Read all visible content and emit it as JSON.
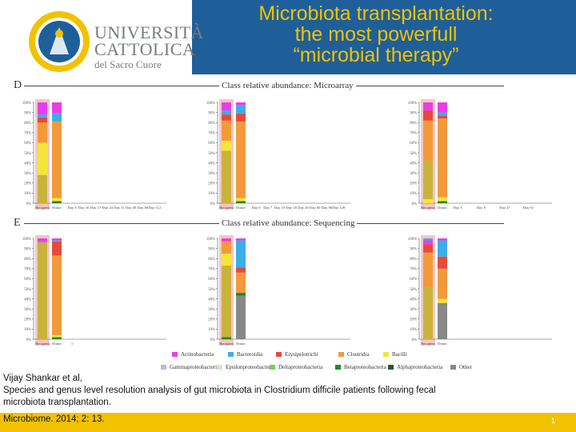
{
  "header": {
    "university_line1": "UNIVERSITÀ",
    "university_line2": "CATTOLICA",
    "university_line3": "del Sacro Cuore",
    "title_line1": "Microbiota transplantation:",
    "title_line2": "the most powerfull",
    "title_line3": "“microbial therapy”",
    "logo_icon": "university-seal-icon"
  },
  "figure": {
    "section_d_letter": "D",
    "section_d_title": "Class relative abundance: Microarray",
    "section_e_letter": "E",
    "section_e_title": "Class relative abundance: Sequencing",
    "y_ticks": [
      "100%",
      "90%",
      "80%",
      "70%",
      "60%",
      "50%",
      "40%",
      "30%",
      "20%",
      "10%",
      "0%"
    ],
    "colors": {
      "Actinobacteria": "#e83ee8",
      "Bacteroidia": "#3aaee8",
      "Erysipelotrichi": "#e84a3a",
      "Clostridia": "#f29a3a",
      "Bacilli": "#f2e63a",
      "Gammaproteobacteria": "#b8b8e8",
      "Epsilonproteobacteria": "#c8ecc8",
      "Deltaproteobacteria": "#78d050",
      "Betaproteobacteria": "#1e8a2e",
      "Alphaproteobacteria": "#1e5a3a",
      "Other": "#888888",
      "Olive": "#c8b43c"
    }
  },
  "chart_data": [
    {
      "type": "bar",
      "title": "Class relative abundance: Microarray — Patient 1",
      "categories": [
        "Recipient",
        "Donor",
        "Day 3",
        "Day 10",
        "Day 17",
        "Day 24",
        "Day 31",
        "Day 38",
        "Day 60",
        "Day 112"
      ],
      "series_note": "stacked percent bars; only Recipient and Donor bars shown",
      "stacks": [
        {
          "category": "Recipient",
          "segments": [
            {
              "name": "Olive",
              "value": 28
            },
            {
              "name": "Bacilli",
              "value": 32
            },
            {
              "name": "Clostridia",
              "value": 20
            },
            {
              "name": "Erysipelotrichi",
              "value": 5
            },
            {
              "name": "Bacteroidia",
              "value": 3
            },
            {
              "name": "Actinobacteria",
              "value": 12
            }
          ]
        },
        {
          "category": "Donor",
          "segments": [
            {
              "name": "Betaproteobacteria",
              "value": 2
            },
            {
              "name": "Bacilli",
              "value": 3
            },
            {
              "name": "Clostridia",
              "value": 76
            },
            {
              "name": "Bacteroidia",
              "value": 8
            },
            {
              "name": "Actinobacteria",
              "value": 11
            }
          ]
        }
      ],
      "ylim": [
        0,
        100
      ]
    },
    {
      "type": "bar",
      "title": "Class relative abundance: Microarray — Patient 2",
      "categories": [
        "Recipient",
        "Donor",
        "Day 0",
        "Day 7",
        "Day 10",
        "Day 18",
        "Day 29",
        "Day 60",
        "Day 90",
        "Day 128"
      ],
      "stacks": [
        {
          "category": "Recipient",
          "segments": [
            {
              "name": "Olive",
              "value": 52
            },
            {
              "name": "Bacilli",
              "value": 10
            },
            {
              "name": "Clostridia",
              "value": 20
            },
            {
              "name": "Erysipelotrichi",
              "value": 6
            },
            {
              "name": "Bacteroidia",
              "value": 4
            },
            {
              "name": "Actinobacteria",
              "value": 8
            }
          ]
        },
        {
          "category": "Donor",
          "segments": [
            {
              "name": "Betaproteobacteria",
              "value": 2
            },
            {
              "name": "Bacilli",
              "value": 3
            },
            {
              "name": "Clostridia",
              "value": 76
            },
            {
              "name": "Erysipelotrichi",
              "value": 8
            },
            {
              "name": "Bacteroidia",
              "value": 8
            },
            {
              "name": "Actinobacteria",
              "value": 3
            }
          ]
        }
      ],
      "ylim": [
        0,
        100
      ]
    },
    {
      "type": "bar",
      "title": "Class relative abundance: Microarray — Patient 3",
      "categories": [
        "Recipient",
        "Donor",
        "Day 3",
        "Day 9",
        "Day 27",
        "Day 61"
      ],
      "stacks": [
        {
          "category": "Recipient",
          "segments": [
            {
              "name": "Bacilli",
              "value": 4
            },
            {
              "name": "Olive",
              "value": 38
            },
            {
              "name": "Clostridia",
              "value": 40
            },
            {
              "name": "Erysipelotrichi",
              "value": 10
            },
            {
              "name": "Actinobacteria",
              "value": 8
            }
          ]
        },
        {
          "category": "Donor",
          "segments": [
            {
              "name": "Betaproteobacteria",
              "value": 2
            },
            {
              "name": "Bacilli",
              "value": 4
            },
            {
              "name": "Clostridia",
              "value": 78
            },
            {
              "name": "Erysipelotrichi",
              "value": 3
            },
            {
              "name": "Bacteroidia",
              "value": 3
            },
            {
              "name": "Actinobacteria",
              "value": 10
            }
          ]
        }
      ],
      "ylim": [
        0,
        100
      ]
    },
    {
      "type": "bar",
      "title": "Class relative abundance: Sequencing — Patient 1",
      "categories": [
        "Recipient",
        "Donor",
        "1"
      ],
      "stacks": [
        {
          "category": "Recipient",
          "segments": [
            {
              "name": "Olive",
              "value": 94
            },
            {
              "name": "Clostridia",
              "value": 2
            },
            {
              "name": "Bacteroidia",
              "value": 1
            },
            {
              "name": "Actinobacteria",
              "value": 3
            }
          ]
        },
        {
          "category": "Donor",
          "segments": [
            {
              "name": "Betaproteobacteria",
              "value": 2
            },
            {
              "name": "Bacilli",
              "value": 2
            },
            {
              "name": "Clostridia",
              "value": 79
            },
            {
              "name": "Erysipelotrichi",
              "value": 14
            },
            {
              "name": "Bacteroidia",
              "value": 1
            },
            {
              "name": "Actinobacteria",
              "value": 2
            }
          ]
        }
      ],
      "ylim": [
        0,
        100
      ]
    },
    {
      "type": "bar",
      "title": "Class relative abundance: Sequencing — Patient 2",
      "categories": [
        "Recipient",
        "Donor"
      ],
      "stacks": [
        {
          "category": "Recipient",
          "segments": [
            {
              "name": "Betaproteobacteria",
              "value": 2
            },
            {
              "name": "Olive",
              "value": 71
            },
            {
              "name": "Bacilli",
              "value": 12
            },
            {
              "name": "Clostridia",
              "value": 12
            },
            {
              "name": "Actinobacteria",
              "value": 3
            }
          ]
        },
        {
          "category": "Donor",
          "segments": [
            {
              "name": "Other",
              "value": 43
            },
            {
              "name": "Betaproteobacteria",
              "value": 3
            },
            {
              "name": "Clostridia",
              "value": 20
            },
            {
              "name": "Erysipelotrichi",
              "value": 5
            },
            {
              "name": "Bacteroidia",
              "value": 27
            },
            {
              "name": "Actinobacteria",
              "value": 2
            }
          ]
        }
      ],
      "ylim": [
        0,
        100
      ]
    },
    {
      "type": "bar",
      "title": "Class relative abundance: Sequencing — Patient 3",
      "categories": [
        "Recipient",
        "Donor"
      ],
      "stacks": [
        {
          "category": "Recipient",
          "segments": [
            {
              "name": "Olive",
              "value": 52
            },
            {
              "name": "Clostridia",
              "value": 34
            },
            {
              "name": "Erysipelotrichi",
              "value": 8
            },
            {
              "name": "Actinobacteria",
              "value": 4
            },
            {
              "name": "Bacteroidia",
              "value": 2
            }
          ]
        },
        {
          "category": "Donor",
          "segments": [
            {
              "name": "Other",
              "value": 36
            },
            {
              "name": "Bacilli",
              "value": 4
            },
            {
              "name": "Clostridia",
              "value": 30
            },
            {
              "name": "Erysipelotrichi",
              "value": 12
            },
            {
              "name": "Bacteroidia",
              "value": 16
            },
            {
              "name": "Actinobacteria",
              "value": 2
            }
          ]
        }
      ],
      "ylim": [
        0,
        100
      ]
    }
  ],
  "legend": [
    {
      "label": "Actinobacteria",
      "color": "#e83ee8"
    },
    {
      "label": "Bacteroidia",
      "color": "#3aaee8"
    },
    {
      "label": "Erysipelotrichi",
      "color": "#e84a3a"
    },
    {
      "label": "Clostridia",
      "color": "#f29a3a"
    },
    {
      "label": "Bacilli",
      "color": "#f2e63a"
    },
    {
      "label": "Gammaproteobacteria",
      "color": "#b8b8e8"
    },
    {
      "label": "Epsilonproteobacteria",
      "color": "#c8ecc8"
    },
    {
      "label": "Deltaproteobacteria",
      "color": "#78d050"
    },
    {
      "label": "Betaproteobacteria",
      "color": "#1e8a2e"
    },
    {
      "label": "Alphaproteobacteria",
      "color": "#1e5a3a"
    },
    {
      "label": "Other",
      "color": "#888888"
    }
  ],
  "citation": {
    "line1": "Vijay Shankar et al,",
    "line2": "Species and genus level resolution analysis of gut microbiota in Clostridium difficile patients following fecal",
    "line3": "microbiota transplantation.",
    "journal": "Microbiome. 2014; 2: 13."
  },
  "footer": {
    "page_number": "1"
  }
}
